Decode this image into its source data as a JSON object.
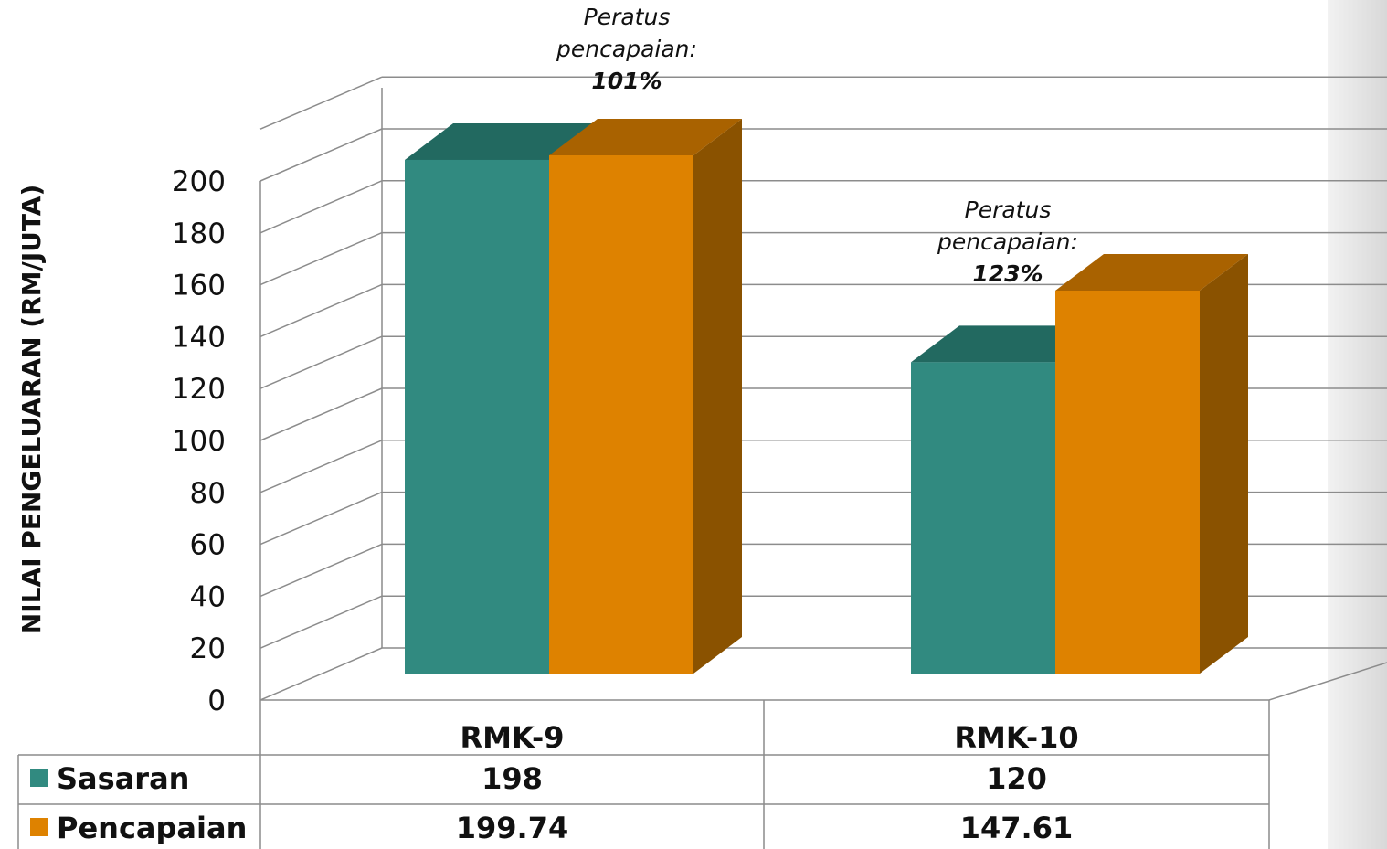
{
  "chart_data": {
    "type": "bar",
    "title": "",
    "xlabel": "",
    "ylabel": "NILAI PENGELUARAN (RM/JUTA)",
    "ylim": [
      0,
      200
    ],
    "yticks": [
      0,
      20,
      40,
      60,
      80,
      100,
      120,
      140,
      160,
      180,
      200
    ],
    "categories": [
      "RMK-9",
      "RMK-10"
    ],
    "series": [
      {
        "name": "Sasaran",
        "values": [
          198,
          120
        ],
        "value_labels": [
          "198",
          "120"
        ],
        "color": "#318A80",
        "top_color": "#226960"
      },
      {
        "name": "Pencapaian",
        "values": [
          199.74,
          147.61
        ],
        "value_labels": [
          "199.74",
          "147.61"
        ],
        "color": "#DE8200",
        "top_color": "#A96200",
        "side_color": "#8A5200"
      }
    ],
    "annotations": [
      {
        "category": "RMK-9",
        "lines": [
          "Peratus",
          "pencapaian:"
        ],
        "value": "101%"
      },
      {
        "category": "RMK-10",
        "lines": [
          "Peratus",
          "pencapaian:"
        ],
        "value": "123%"
      }
    ],
    "grid": true,
    "style": "3d-column",
    "legend": "data-table-below"
  }
}
